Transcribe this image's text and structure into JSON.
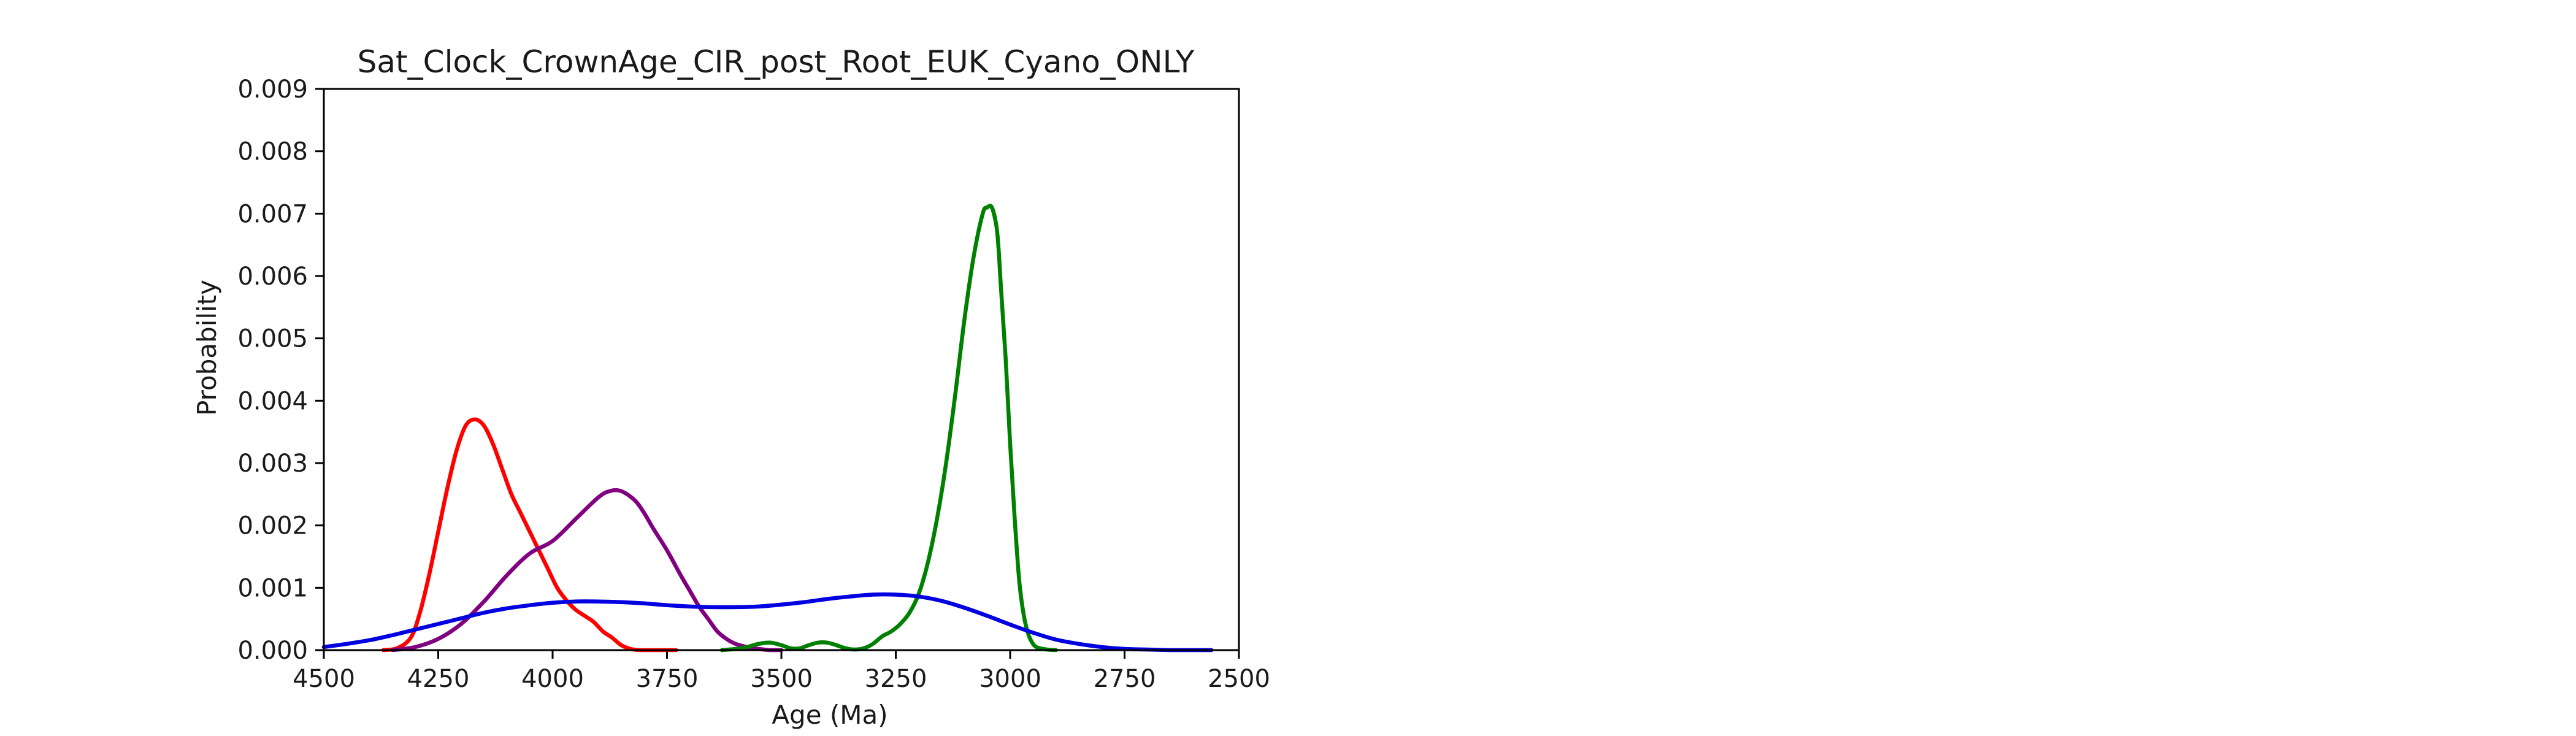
{
  "chart_data": {
    "type": "line",
    "title": "Sat_Clock_CrownAge_CIR_post_Root_EUK_Cyano_ONLY",
    "xlabel": "Age (Ma)",
    "ylabel": "Probability",
    "xlim": [
      4500,
      2500
    ],
    "x_inverted": true,
    "ylim": [
      0,
      0.009
    ],
    "grid": false,
    "legend": "none",
    "x_ticks": [
      4500,
      4250,
      4000,
      3750,
      3500,
      3250,
      3000,
      2750,
      2500
    ],
    "x_tick_labels": [
      "4500",
      "4250",
      "4000",
      "3750",
      "3500",
      "3250",
      "3000",
      "2750",
      "2500"
    ],
    "y_ticks": [
      0,
      0.001,
      0.002,
      0.003,
      0.004,
      0.005,
      0.006,
      0.007,
      0.008,
      0.009
    ],
    "y_tick_labels": [
      "0.000",
      "0.001",
      "0.002",
      "0.003",
      "0.004",
      "0.005",
      "0.006",
      "0.007",
      "0.008",
      "0.009"
    ],
    "series": [
      {
        "color": "#ff0000",
        "x": [
          4370,
          4340,
          4310,
          4290,
          4270,
          4250,
          4230,
          4210,
          4190,
          4170,
          4150,
          4130,
          4110,
          4090,
          4070,
          4050,
          4030,
          4010,
          3990,
          3970,
          3950,
          3930,
          3910,
          3890,
          3870,
          3850,
          3830,
          3810,
          3790,
          3770,
          3750,
          3730
        ],
        "y": [
          0.0,
          3e-05,
          0.0002,
          0.0006,
          0.0012,
          0.0019,
          0.0026,
          0.0032,
          0.0036,
          0.0037,
          0.0036,
          0.0033,
          0.0029,
          0.0025,
          0.0022,
          0.0019,
          0.0016,
          0.0013,
          0.001,
          0.0008,
          0.00065,
          0.00055,
          0.00045,
          0.0003,
          0.0002,
          8e-05,
          2e-05,
          0.0,
          0.0,
          0.0,
          0.0,
          0.0
        ]
      },
      {
        "color": "#800080",
        "x": [
          4350,
          4300,
          4250,
          4200,
          4150,
          4100,
          4050,
          4000,
          3950,
          3900,
          3875,
          3850,
          3820,
          3800,
          3780,
          3750,
          3720,
          3700,
          3680,
          3660,
          3640,
          3620,
          3600,
          3570,
          3550,
          3525,
          3500
        ],
        "y": [
          0.0,
          5e-05,
          0.00018,
          0.00042,
          0.00078,
          0.0012,
          0.00155,
          0.00175,
          0.0021,
          0.00245,
          0.00255,
          0.00255,
          0.0024,
          0.0022,
          0.00195,
          0.0016,
          0.0012,
          0.00095,
          0.0007,
          0.0005,
          0.0003,
          0.00018,
          0.0001,
          4e-05,
          2e-05,
          0.0,
          0.0
        ]
      },
      {
        "color": "#008000",
        "x": [
          3630,
          3600,
          3575,
          3550,
          3525,
          3500,
          3480,
          3460,
          3440,
          3420,
          3400,
          3380,
          3360,
          3340,
          3320,
          3300,
          3280,
          3260,
          3240,
          3220,
          3200,
          3180,
          3160,
          3140,
          3120,
          3100,
          3080,
          3060,
          3050,
          3040,
          3030,
          3025,
          3020,
          3010,
          3000,
          2990,
          2980,
          2970,
          2960,
          2950,
          2940,
          2920,
          2900
        ],
        "y": [
          0.0,
          2e-05,
          5e-05,
          0.0001,
          0.00012,
          8e-05,
          3e-05,
          3e-05,
          8e-05,
          0.00012,
          0.00012,
          8e-05,
          3e-05,
          1e-05,
          3e-05,
          0.0001,
          0.00022,
          0.0003,
          0.00042,
          0.0006,
          0.0009,
          0.0014,
          0.0021,
          0.003,
          0.0041,
          0.0053,
          0.0063,
          0.007,
          0.0071,
          0.0071,
          0.0068,
          0.0064,
          0.0058,
          0.0047,
          0.0033,
          0.0021,
          0.0011,
          0.00055,
          0.00025,
          0.0001,
          4e-05,
          1e-05,
          0.0
        ]
      },
      {
        "color": "#0000e0",
        "x": [
          4500,
          4450,
          4400,
          4350,
          4300,
          4250,
          4200,
          4150,
          4100,
          4050,
          4000,
          3950,
          3900,
          3850,
          3800,
          3750,
          3700,
          3650,
          3600,
          3550,
          3500,
          3450,
          3400,
          3350,
          3300,
          3250,
          3200,
          3150,
          3100,
          3050,
          3000,
          2950,
          2900,
          2850,
          2800,
          2750,
          2700,
          2650,
          2600,
          2560
        ],
        "y": [
          5e-05,
          0.0001,
          0.00016,
          0.00024,
          0.00033,
          0.00042,
          0.00051,
          0.0006,
          0.00067,
          0.00072,
          0.00076,
          0.00078,
          0.00078,
          0.00077,
          0.00075,
          0.00072,
          0.0007,
          0.00069,
          0.00069,
          0.0007,
          0.00073,
          0.00077,
          0.00082,
          0.00086,
          0.00089,
          0.00089,
          0.00086,
          0.00079,
          0.00068,
          0.00055,
          0.00041,
          0.00028,
          0.00017,
          0.0001,
          5e-05,
          2e-05,
          1e-05,
          0.0,
          0.0,
          0.0
        ]
      }
    ]
  }
}
